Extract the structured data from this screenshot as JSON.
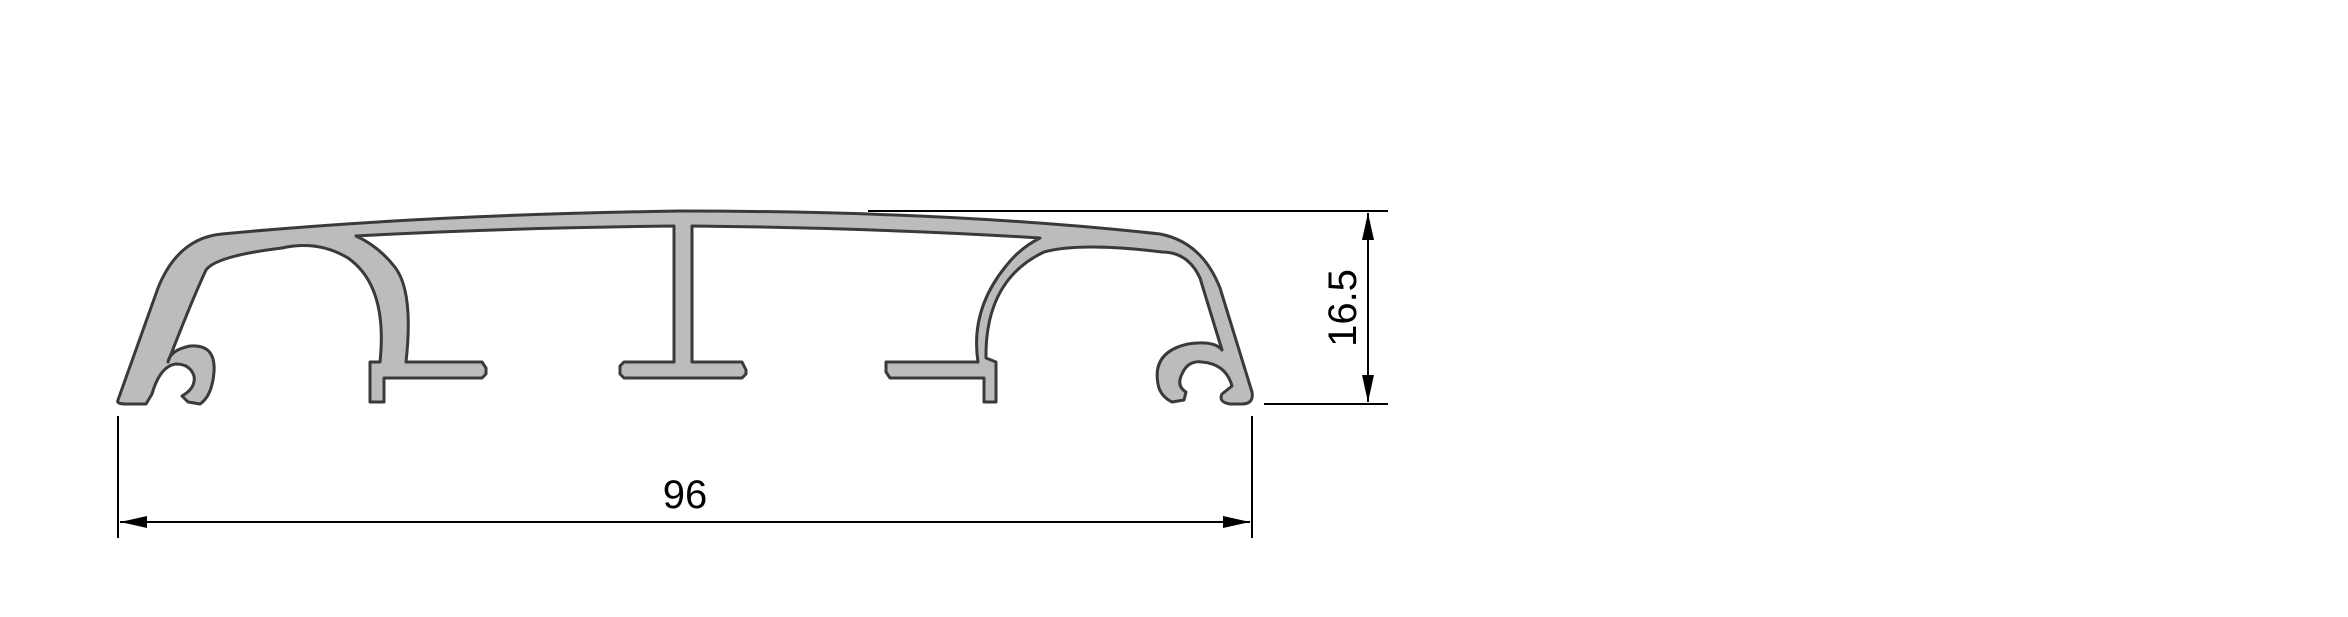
{
  "drawing": {
    "dimensions": {
      "width": "96",
      "height": "16.5"
    },
    "colors": {
      "profile_fill": "#bcbcbc",
      "profile_outline": "#3a3a3a",
      "dimension_lines": "#000000",
      "background": "#ffffff"
    }
  }
}
